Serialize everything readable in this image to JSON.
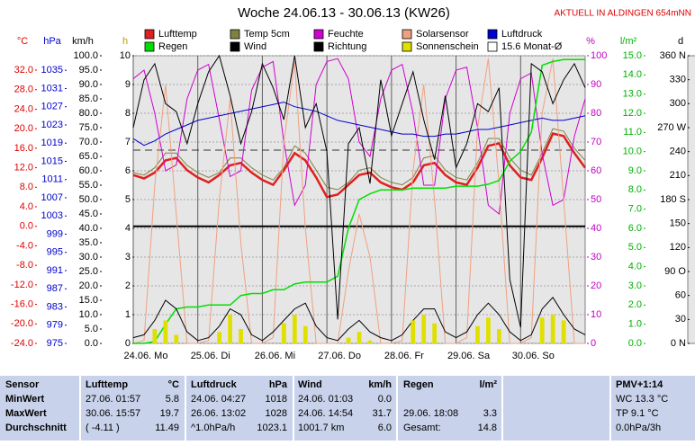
{
  "title": "Woche 24.06.13 - 30.06.13 (KW26)",
  "station": "AKTUELL IN ALDINGEN 654mNN",
  "chart_data": {
    "type": "line",
    "grid": true,
    "xlim": [
      0,
      168
    ],
    "xticks": [
      {
        "value": 0,
        "label": "24.06. Mo"
      },
      {
        "value": 24,
        "label": "25.06. Di"
      },
      {
        "value": 48,
        "label": "26.06. Mi"
      },
      {
        "value": 72,
        "label": "27.06. Do"
      },
      {
        "value": 96,
        "label": "28.06. Fr"
      },
      {
        "value": 120,
        "label": "29.06. Sa"
      },
      {
        "value": 144,
        "label": "30.06. So"
      }
    ],
    "x": [
      0,
      4,
      8,
      12,
      16,
      20,
      24,
      28,
      32,
      36,
      40,
      44,
      48,
      52,
      56,
      60,
      64,
      68,
      72,
      76,
      80,
      84,
      88,
      92,
      96,
      100,
      104,
      108,
      112,
      116,
      120,
      124,
      128,
      132,
      136,
      140,
      144,
      148,
      152,
      156,
      160,
      164,
      168
    ],
    "axes": [
      {
        "key": "c",
        "title": "°C",
        "color": "#e00000",
        "lim": [
          -24,
          34.95
        ],
        "ticks": [
          {
            "value": -24,
            "label": "-24.0"
          },
          {
            "value": -20,
            "label": "-20.0"
          },
          {
            "value": -16,
            "label": "-16.0"
          },
          {
            "value": -12,
            "label": "-12.0"
          },
          {
            "value": -8,
            "label": "-8.0"
          },
          {
            "value": -4,
            "label": "-4.0"
          },
          {
            "value": 0,
            "label": "0.0"
          },
          {
            "value": 4,
            "label": "4.0"
          },
          {
            "value": 8,
            "label": "8.0"
          },
          {
            "value": 12,
            "label": "12.0"
          },
          {
            "value": 16,
            "label": "16.0"
          },
          {
            "value": 20,
            "label": "20.0"
          },
          {
            "value": 24,
            "label": "24.0"
          },
          {
            "value": 28,
            "label": "28.0"
          },
          {
            "value": 32,
            "label": "32.0"
          }
        ]
      },
      {
        "key": "hpa",
        "title": "hPa",
        "color": "#0000d0",
        "lim": [
          975,
          1038.2
        ],
        "ticks": [
          975,
          979,
          983,
          987,
          991,
          995,
          999,
          1003,
          1007,
          1011,
          1015,
          1019,
          1023,
          1027,
          1031,
          1035
        ]
      },
      {
        "key": "kmh",
        "title": "km/h",
        "color": "#000000",
        "lim": [
          0,
          100
        ],
        "ticks": [
          {
            "value": 0,
            "label": "0.0"
          },
          {
            "value": 5,
            "label": "5.0"
          },
          {
            "value": 10,
            "label": "10.0"
          },
          {
            "value": 15,
            "label": "15.0"
          },
          {
            "value": 20,
            "label": "20.0"
          },
          {
            "value": 25,
            "label": "25.0"
          },
          {
            "value": 30,
            "label": "30.0"
          },
          {
            "value": 35,
            "label": "35.0"
          },
          {
            "value": 40,
            "label": "40.0"
          },
          {
            "value": 45,
            "label": "45.0"
          },
          {
            "value": 50,
            "label": "50.0"
          },
          {
            "value": 55,
            "label": "55.0"
          },
          {
            "value": 60,
            "label": "60.0"
          },
          {
            "value": 65,
            "label": "65.0"
          },
          {
            "value": 70,
            "label": "70.0"
          },
          {
            "value": 75,
            "label": "75.0"
          },
          {
            "value": 80,
            "label": "80.0"
          },
          {
            "value": 85,
            "label": "85.0"
          },
          {
            "value": 90,
            "label": "90.0"
          },
          {
            "value": 95,
            "label": "95.0"
          },
          {
            "value": 100,
            "label": "100.0"
          }
        ]
      },
      {
        "key": "h",
        "title": "h",
        "color": "#c0a000",
        "lim": [
          0,
          10
        ],
        "ticks": [
          0,
          1,
          2,
          3,
          4,
          5,
          6,
          7,
          8,
          9,
          10
        ]
      },
      {
        "key": "pct",
        "title": "%",
        "color": "#c000c0",
        "lim": [
          0,
          100
        ],
        "ticks": [
          0,
          10,
          20,
          30,
          40,
          50,
          60,
          70,
          80,
          90,
          100
        ]
      },
      {
        "key": "rain",
        "title": "l/m²",
        "color": "#00b000",
        "lim": [
          0,
          15
        ],
        "ticks": [
          {
            "value": 0,
            "label": "0.0"
          },
          {
            "value": 1,
            "label": "1.0"
          },
          {
            "value": 2,
            "label": "2.0"
          },
          {
            "value": 3,
            "label": "3.0"
          },
          {
            "value": 4,
            "label": "4.0"
          },
          {
            "value": 5,
            "label": "5.0"
          },
          {
            "value": 6,
            "label": "6.0"
          },
          {
            "value": 7,
            "label": "7.0"
          },
          {
            "value": 8,
            "label": "8.0"
          },
          {
            "value": 9,
            "label": "9.0"
          },
          {
            "value": 10,
            "label": "10.0"
          },
          {
            "value": 11,
            "label": "11.0"
          },
          {
            "value": 12,
            "label": "12.0"
          },
          {
            "value": 13,
            "label": "13.0"
          },
          {
            "value": 14,
            "label": "14.0"
          },
          {
            "value": 15,
            "label": "15.0"
          }
        ]
      },
      {
        "key": "dir",
        "title": "d",
        "color": "#000000",
        "lim": [
          0,
          360
        ],
        "ticks": [
          {
            "value": 0,
            "label": "0 N"
          },
          30,
          60,
          {
            "value": 90,
            "label": "90 O"
          },
          120,
          150,
          {
            "value": 180,
            "label": "180 S"
          },
          210,
          240,
          {
            "value": 270,
            "label": "270 W"
          },
          300,
          330,
          {
            "value": 360,
            "label": "360 N"
          }
        ]
      }
    ],
    "series": [
      {
        "name": "Lufttemp",
        "color": "#e02020",
        "axis": "c",
        "style": "line",
        "width": 2.5,
        "values": [
          10.5,
          9.8,
          11.0,
          13.5,
          14.0,
          11.5,
          10.0,
          9.0,
          10.5,
          12.5,
          13.0,
          11.0,
          9.5,
          8.5,
          11.5,
          15.0,
          13.5,
          10.0,
          6.0,
          6.5,
          8.5,
          10.5,
          11.0,
          9.0,
          8.0,
          7.5,
          9.0,
          12.5,
          13.0,
          10.5,
          9.0,
          8.5,
          12.0,
          16.5,
          17.0,
          12.5,
          10.0,
          9.5,
          14.0,
          19.0,
          18.5,
          15.0,
          12.0
        ]
      },
      {
        "name": "Temp 5cm",
        "color": "#808040",
        "axis": "c",
        "style": "line",
        "width": 1,
        "values": [
          11,
          10.5,
          12,
          15,
          15,
          12.5,
          11,
          10,
          11,
          14,
          14,
          12,
          10.5,
          9.5,
          12,
          16.5,
          15,
          11.5,
          8,
          7.5,
          9,
          11.5,
          12,
          10,
          9,
          8.5,
          10,
          14,
          14.5,
          11.5,
          10,
          9.5,
          13,
          18,
          18,
          14,
          11.5,
          10.5,
          15,
          20,
          19.5,
          16,
          13.5
        ]
      },
      {
        "name": "Feuchte",
        "color": "#d000d0",
        "axis": "pct",
        "style": "line",
        "width": 1,
        "values": [
          92,
          95,
          80,
          60,
          62,
          85,
          95,
          97,
          78,
          58,
          60,
          88,
          96,
          98,
          70,
          48,
          55,
          90,
          98,
          99,
          92,
          70,
          65,
          85,
          95,
          97,
          80,
          55,
          55,
          85,
          95,
          96,
          75,
          48,
          45,
          80,
          92,
          94,
          66,
          48,
          50,
          72,
          85
        ]
      },
      {
        "name": "Solarsensor",
        "color": "#f0a080",
        "axis": "pct",
        "style": "line",
        "width": 1,
        "values": [
          0,
          1,
          55,
          90,
          45,
          0,
          0,
          1,
          50,
          85,
          35,
          0,
          0,
          2,
          70,
          98,
          40,
          0,
          0,
          0,
          25,
          45,
          30,
          0,
          0,
          1,
          60,
          90,
          50,
          0,
          0,
          2,
          75,
          99,
          55,
          0,
          0,
          2,
          80,
          99,
          50,
          0,
          0
        ]
      },
      {
        "name": "Luftdruck",
        "color": "#0000d0",
        "axis": "hpa",
        "style": "line",
        "width": 1,
        "values": [
          1020,
          1018.5,
          1019.5,
          1021,
          1022,
          1023,
          1024,
          1024.5,
          1025,
          1025.5,
          1026,
          1026.5,
          1027,
          1027.5,
          1028,
          1027,
          1026.5,
          1026,
          1025,
          1024,
          1023.5,
          1023,
          1022.5,
          1022,
          1021.5,
          1021,
          1021,
          1020.5,
          1020.5,
          1021,
          1021,
          1021.5,
          1022,
          1022,
          1022.5,
          1023,
          1023.5,
          1024,
          1024.5,
          1024,
          1024,
          1024.5,
          1025
        ]
      },
      {
        "name": "Regen",
        "color": "#00e000",
        "axis": "rain",
        "style": "line",
        "width": 1.5,
        "values": [
          0,
          0,
          0.1,
          1.0,
          1.8,
          1.9,
          1.9,
          2.0,
          2.0,
          2.0,
          2.5,
          2.6,
          2.6,
          2.8,
          2.8,
          3.1,
          3.2,
          3.2,
          3.2,
          3.5,
          6.0,
          7.5,
          7.8,
          8.0,
          8.0,
          8.0,
          8.1,
          8.1,
          8.1,
          8.1,
          8.2,
          8.2,
          8.2,
          8.3,
          8.5,
          9.5,
          10.0,
          11.0,
          14.5,
          14.7,
          14.8,
          14.8,
          14.8
        ]
      },
      {
        "name": "Wind",
        "color": "#000000",
        "axis": "kmh",
        "style": "line",
        "width": 1,
        "values": [
          2,
          3,
          8,
          15,
          12,
          4,
          1,
          2,
          6,
          12,
          10,
          3,
          1,
          4,
          8,
          12,
          14,
          6,
          2,
          1,
          5,
          8,
          4,
          2,
          1,
          3,
          8,
          12,
          12,
          4,
          2,
          4,
          10,
          14,
          10,
          4,
          1,
          3,
          12,
          16,
          10,
          5,
          3
        ]
      },
      {
        "name": "Richtung",
        "color": "#000000",
        "axis": "dir",
        "style": "line",
        "width": 1,
        "values": [
          270,
          330,
          350,
          300,
          290,
          250,
          300,
          340,
          360,
          310,
          250,
          290,
          350,
          320,
          280,
          360,
          270,
          300,
          240,
          30,
          250,
          270,
          200,
          330,
          260,
          300,
          340,
          280,
          230,
          310,
          220,
          250,
          300,
          290,
          320,
          80,
          20,
          350,
          340,
          300,
          330,
          350,
          320
        ]
      },
      {
        "name": "Sonnenschein",
        "color": "#e0e000",
        "axis": "h",
        "style": "bar",
        "values": [
          0,
          0,
          0.5,
          0.8,
          0.3,
          0,
          0,
          0,
          0.4,
          1.0,
          0.5,
          0,
          0,
          0,
          0.7,
          1.0,
          0.6,
          0,
          0,
          0,
          0.2,
          0.4,
          0.1,
          0,
          0,
          0,
          0.8,
          1.0,
          0.7,
          0,
          0,
          0,
          0.6,
          0.9,
          0.5,
          0,
          0,
          0,
          0.9,
          1.0,
          0.8,
          0,
          0
        ]
      }
    ],
    "monthly_avg": {
      "name": "15.6 Monat-Ø",
      "value": 15.6,
      "axis": "c",
      "color": "#ffffff"
    }
  },
  "table": {
    "rows": [
      [
        "Sensor",
        "Lufttemp",
        "°C",
        "Luftdruck",
        "hPa",
        "Wind",
        "km/h",
        "Regen",
        "l/m²",
        "PMV+1:14"
      ],
      [
        "MinWert",
        "27.06.  01:57",
        "5.8",
        "24.06.  04:27",
        "1018",
        "24.06.  01:03",
        "0.0",
        null,
        null,
        "WC 13.3 °C"
      ],
      [
        "MaxWert",
        "30.06.  15:57",
        "19.7",
        "26.06.  13:02",
        "1028",
        "24.06.  14:54",
        "31.7",
        "29.06.  18:08",
        "3.3",
        "TP 9.1 °C"
      ],
      [
        "Durchschnitt",
        "( -4.11 )",
        "11.49",
        "^1.0hPa/h",
        "1023.1",
        "1001.7 km",
        "6.0",
        "Gesamt:",
        "14.8",
        "0.0hPa/3h"
      ]
    ]
  }
}
